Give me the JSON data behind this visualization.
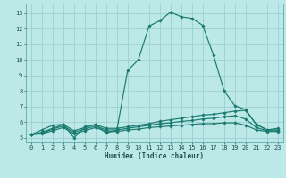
{
  "xlabel": "Humidex (Indice chaleur)",
  "x_ticks": [
    0,
    1,
    2,
    3,
    4,
    5,
    6,
    7,
    8,
    9,
    10,
    11,
    12,
    13,
    14,
    15,
    16,
    17,
    18,
    19,
    20,
    21,
    22,
    23
  ],
  "y_ticks": [
    5,
    6,
    7,
    8,
    9,
    10,
    11,
    12,
    13
  ],
  "xlim": [
    -0.5,
    23.5
  ],
  "ylim": [
    4.7,
    13.6
  ],
  "background_color": "#bce8e8",
  "grid_color": "#9dd0d0",
  "line_color": "#1a7a6e",
  "lines": [
    {
      "x": [
        0,
        1,
        2,
        3,
        4,
        5,
        6,
        7,
        8,
        9,
        10,
        11,
        12,
        13,
        14,
        15,
        16,
        17,
        18,
        19,
        20,
        21,
        22,
        23
      ],
      "y": [
        5.2,
        5.5,
        5.8,
        5.85,
        5.0,
        5.7,
        5.85,
        5.3,
        5.5,
        9.3,
        10.0,
        12.15,
        12.5,
        13.05,
        12.75,
        12.65,
        12.2,
        10.3,
        8.0,
        7.05,
        6.8,
        5.85,
        5.5,
        5.6
      ]
    },
    {
      "x": [
        0,
        1,
        2,
        3,
        4,
        5,
        6,
        7,
        8,
        9,
        10,
        11,
        12,
        13,
        14,
        15,
        16,
        17,
        18,
        19,
        20,
        21,
        22,
        23
      ],
      "y": [
        5.2,
        5.35,
        5.6,
        5.85,
        5.45,
        5.65,
        5.85,
        5.6,
        5.6,
        5.7,
        5.8,
        5.9,
        6.05,
        6.15,
        6.25,
        6.35,
        6.45,
        6.5,
        6.6,
        6.7,
        6.75,
        5.85,
        5.5,
        5.5
      ]
    },
    {
      "x": [
        0,
        1,
        2,
        3,
        4,
        5,
        6,
        7,
        8,
        9,
        10,
        11,
        12,
        13,
        14,
        15,
        16,
        17,
        18,
        19,
        20,
        21,
        22,
        23
      ],
      "y": [
        5.2,
        5.3,
        5.55,
        5.75,
        5.35,
        5.55,
        5.75,
        5.5,
        5.5,
        5.6,
        5.7,
        5.8,
        5.9,
        5.95,
        6.05,
        6.1,
        6.2,
        6.25,
        6.35,
        6.4,
        6.2,
        5.65,
        5.45,
        5.45
      ]
    },
    {
      "x": [
        0,
        1,
        2,
        3,
        4,
        5,
        6,
        7,
        8,
        9,
        10,
        11,
        12,
        13,
        14,
        15,
        16,
        17,
        18,
        19,
        20,
        21,
        22,
        23
      ],
      "y": [
        5.2,
        5.25,
        5.45,
        5.65,
        5.25,
        5.45,
        5.65,
        5.4,
        5.4,
        5.5,
        5.55,
        5.65,
        5.7,
        5.75,
        5.8,
        5.85,
        5.9,
        5.9,
        5.95,
        5.95,
        5.8,
        5.5,
        5.4,
        5.4
      ]
    }
  ]
}
